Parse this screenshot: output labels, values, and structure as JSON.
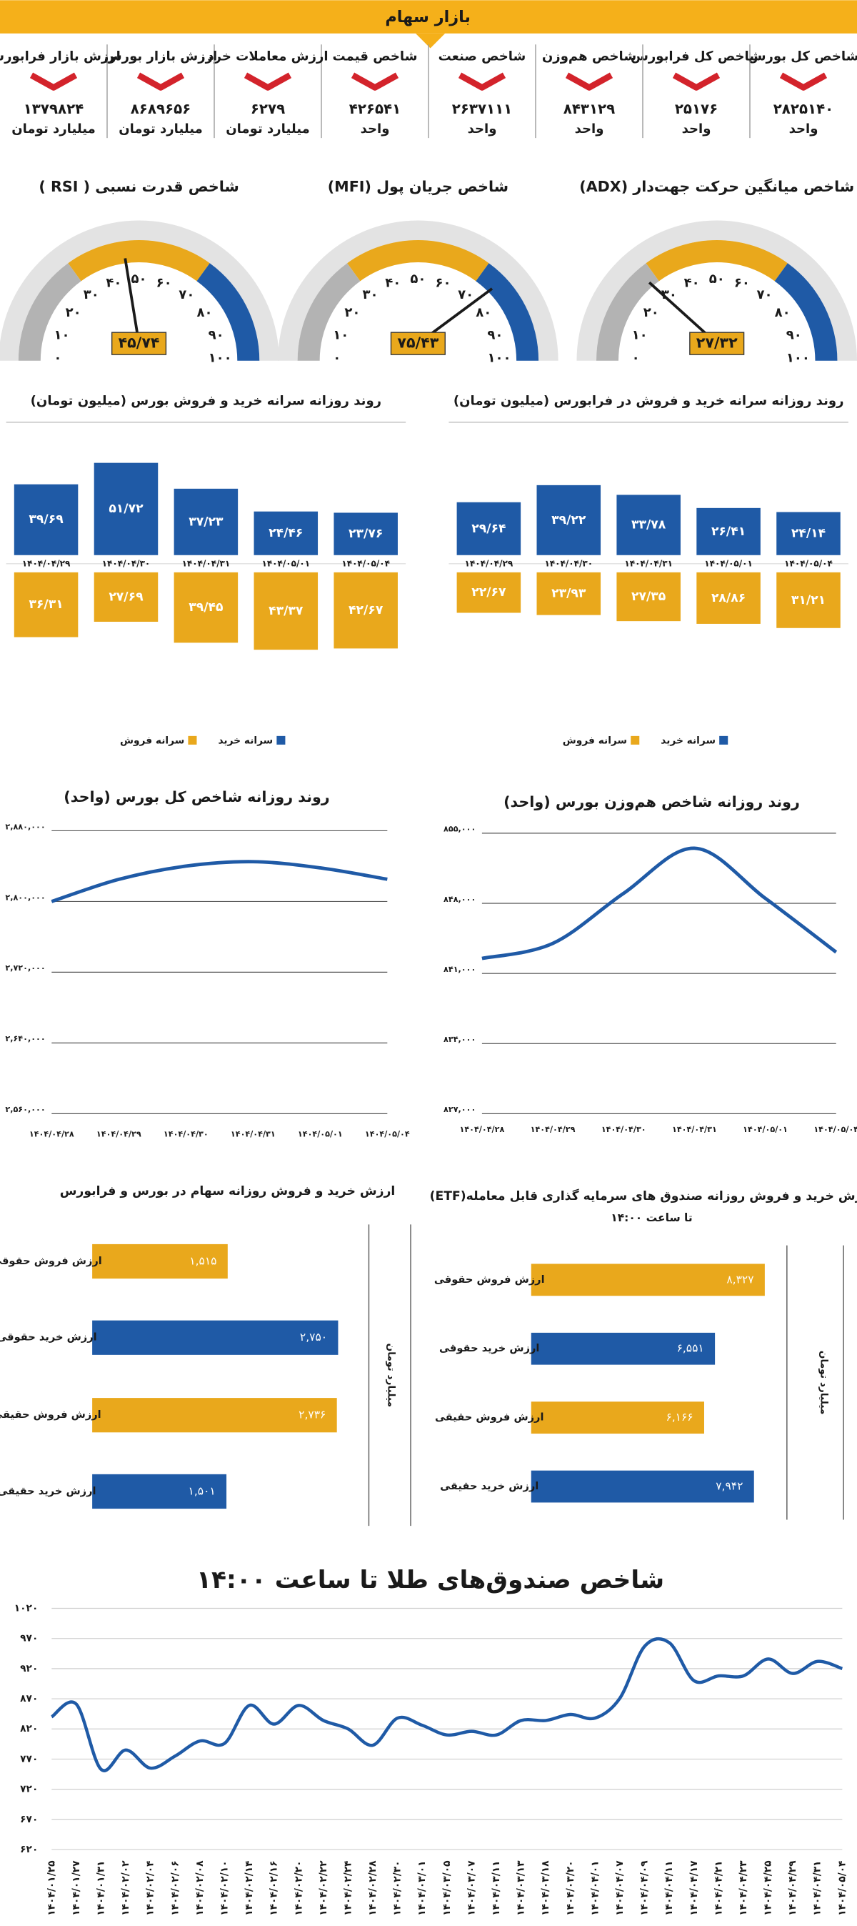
{
  "header": {
    "title": "بازار سهام"
  },
  "indices": [
    {
      "label": "شاخص کل بورس",
      "value": "۲۸۲۵۱۴۰",
      "unit": "واحد"
    },
    {
      "label": "شاخص کل فرابورس",
      "value": "۲۵۱۷۶",
      "unit": "واحد"
    },
    {
      "label": "شاخص هم‌وزن",
      "value": "۸۴۳۱۲۹",
      "unit": "واحد"
    },
    {
      "label": "شاخص صنعت",
      "value": "۲۶۳۷۱۱۱",
      "unit": "واحد"
    },
    {
      "label": "شاخص قیمت",
      "value": "۴۲۶۵۴۱",
      "unit": "واحد"
    },
    {
      "label": "ارزش معاملات خرد",
      "value": "۶۲۷۹",
      "unit": "میلیارد تومان"
    },
    {
      "label": "ارزش بازار بورس",
      "value": "۸۶۸۹۶۵۶",
      "unit": "میلیارد تومان"
    },
    {
      "label": "ارزش بازار فرابورس",
      "value": "۱۳۷۹۸۲۴",
      "unit": "میلیارد تومان"
    }
  ],
  "chart_data": [
    {
      "type": "gauge",
      "title": "شاخص میانگین حرکت جهت‌دار (ADX)",
      "values": [
        27.32
      ],
      "value_labels": [
        "۲۷/۳۲"
      ],
      "ylim": [
        0,
        100
      ],
      "yticks": [
        {
          "value": 0,
          "label": "۰"
        },
        {
          "value": 10,
          "label": "۱۰"
        },
        {
          "value": 20,
          "label": "۲۰"
        },
        {
          "value": 30,
          "label": "۳۰"
        },
        {
          "value": 40,
          "label": "۴۰"
        },
        {
          "value": 50,
          "label": "۵۰"
        },
        {
          "value": 60,
          "label": "۶۰"
        },
        {
          "value": 70,
          "label": "۷۰"
        },
        {
          "value": 80,
          "label": "۸۰"
        },
        {
          "value": 90,
          "label": "۹۰"
        },
        {
          "value": 100,
          "label": "۱۰۰"
        }
      ],
      "bands": [
        {
          "from": 0,
          "to": 30,
          "color": "#b3b3b3"
        },
        {
          "from": 30,
          "to": 70,
          "color": "#e9a81c"
        },
        {
          "from": 70,
          "to": 100,
          "color": "#1f5aa6"
        }
      ]
    },
    {
      "type": "gauge",
      "title": "شاخص جریان پول (MFI)",
      "values": [
        75.43
      ],
      "value_labels": [
        "۷۵/۴۳"
      ],
      "ylim": [
        0,
        100
      ],
      "yticks": [
        {
          "value": 0,
          "label": "۰"
        },
        {
          "value": 10,
          "label": "۱۰"
        },
        {
          "value": 20,
          "label": "۲۰"
        },
        {
          "value": 30,
          "label": "۳۰"
        },
        {
          "value": 40,
          "label": "۴۰"
        },
        {
          "value": 50,
          "label": "۵۰"
        },
        {
          "value": 60,
          "label": "۶۰"
        },
        {
          "value": 70,
          "label": "۷۰"
        },
        {
          "value": 80,
          "label": "۸۰"
        },
        {
          "value": 90,
          "label": "۹۰"
        },
        {
          "value": 100,
          "label": "۱۰۰"
        }
      ],
      "bands": [
        {
          "from": 0,
          "to": 30,
          "color": "#b3b3b3"
        },
        {
          "from": 30,
          "to": 70,
          "color": "#e9a81c"
        },
        {
          "from": 70,
          "to": 100,
          "color": "#1f5aa6"
        }
      ]
    },
    {
      "type": "gauge",
      "title": "شاخص قدرت نسبی ( RSI )",
      "values": [
        45.74
      ],
      "value_labels": [
        "۴۵/۷۴"
      ],
      "ylim": [
        0,
        100
      ],
      "yticks": [
        {
          "value": 0,
          "label": "۰"
        },
        {
          "value": 10,
          "label": "۱۰"
        },
        {
          "value": 20,
          "label": "۲۰"
        },
        {
          "value": 30,
          "label": "۳۰"
        },
        {
          "value": 40,
          "label": "۴۰"
        },
        {
          "value": 50,
          "label": "۵۰"
        },
        {
          "value": 60,
          "label": "۶۰"
        },
        {
          "value": 70,
          "label": "۷۰"
        },
        {
          "value": 80,
          "label": "۸۰"
        },
        {
          "value": 90,
          "label": "۹۰"
        },
        {
          "value": 100,
          "label": "۱۰۰"
        }
      ],
      "bands": [
        {
          "from": 0,
          "to": 30,
          "color": "#b3b3b3"
        },
        {
          "from": 30,
          "to": 70,
          "color": "#e9a81c"
        },
        {
          "from": 70,
          "to": 100,
          "color": "#1f5aa6"
        }
      ]
    },
    {
      "type": "bar",
      "title": "روند روزانه سرانه خرید و فروش بورس (میلیون تومان)",
      "mirrored": true,
      "categories": [
        "۱۴۰۴/۰۴/۲۹",
        "۱۴۰۴/۰۴/۳۰",
        "۱۴۰۴/۰۴/۳۱",
        "۱۴۰۴/۰۵/۰۱",
        "۱۴۰۴/۰۵/۰۴"
      ],
      "series": [
        {
          "name": "سرانه خرید",
          "color": "#1f5aa6",
          "values": [
            39.69,
            51.72,
            37.23,
            24.46,
            23.76
          ],
          "value_labels": [
            "۳۹/۶۹",
            "۵۱/۷۲",
            "۳۷/۲۳",
            "۲۴/۴۶",
            "۲۳/۷۶"
          ]
        },
        {
          "name": "سرانه فروش",
          "color": "#e9a81c",
          "values": [
            36.31,
            27.69,
            39.45,
            43.37,
            42.67
          ],
          "value_labels": [
            "۳۶/۳۱",
            "۲۷/۶۹",
            "۳۹/۴۵",
            "۴۳/۳۷",
            "۴۲/۶۷"
          ]
        }
      ]
    },
    {
      "type": "bar",
      "title": "روند روزانه سرانه خرید و فروش در فرابورس (میلیون تومان)",
      "mirrored": true,
      "categories": [
        "۱۴۰۴/۰۴/۲۹",
        "۱۴۰۴/۰۴/۳۰",
        "۱۴۰۴/۰۴/۳۱",
        "۱۴۰۴/۰۵/۰۱",
        "۱۴۰۴/۰۵/۰۴"
      ],
      "series": [
        {
          "name": "سرانه خرید",
          "color": "#1f5aa6",
          "values": [
            29.64,
            39.22,
            33.78,
            26.41,
            24.14
          ],
          "value_labels": [
            "۲۹/۶۴",
            "۳۹/۲۲",
            "۳۳/۷۸",
            "۲۶/۴۱",
            "۲۴/۱۴"
          ]
        },
        {
          "name": "سرانه فروش",
          "color": "#e9a81c",
          "values": [
            22.67,
            23.93,
            27.35,
            28.86,
            31.21
          ],
          "value_labels": [
            "۲۲/۶۷",
            "۲۳/۹۳",
            "۲۷/۳۵",
            "۲۸/۸۶",
            "۳۱/۲۱"
          ]
        }
      ]
    },
    {
      "type": "line",
      "title": "روند روزانه شاخص کل بورس (واحد)",
      "color": "#1f5aa6",
      "grid": true,
      "categories": [
        "۱۴۰۴/۰۴/۲۸",
        "۱۴۰۴/۰۴/۲۹",
        "۱۴۰۴/۰۴/۳۰",
        "۱۴۰۴/۰۴/۳۱",
        "۱۴۰۴/۰۵/۰۱",
        "۱۴۰۴/۰۵/۰۴"
      ],
      "values": [
        2800000,
        2825000,
        2840000,
        2845000,
        2838000,
        2825140
      ],
      "ylim": [
        2560000,
        2880000
      ],
      "yticks": [
        {
          "value": 2560000,
          "label": "۲,۵۶۰,۰۰۰"
        },
        {
          "value": 2640000,
          "label": "۲,۶۴۰,۰۰۰"
        },
        {
          "value": 2720000,
          "label": "۲,۷۲۰,۰۰۰"
        },
        {
          "value": 2800000,
          "label": "۲,۸۰۰,۰۰۰"
        },
        {
          "value": 2880000,
          "label": "۲,۸۸۰,۰۰۰"
        }
      ]
    },
    {
      "type": "line",
      "title": "روند روزانه شاخص هم‌وزن بورس (واحد)",
      "color": "#1f5aa6",
      "grid": true,
      "categories": [
        "۱۴۰۴/۰۴/۲۸",
        "۱۴۰۴/۰۴/۲۹",
        "۱۴۰۴/۰۴/۳۰",
        "۱۴۰۴/۰۴/۳۱",
        "۱۴۰۴/۰۵/۰۱",
        "۱۴۰۴/۰۵/۰۴"
      ],
      "values": [
        842500,
        844000,
        849000,
        853500,
        848500,
        843129
      ],
      "ylim": [
        827000,
        855000
      ],
      "yticks": [
        {
          "value": 827000,
          "label": "۸۲۷,۰۰۰"
        },
        {
          "value": 834000,
          "label": "۸۳۴,۰۰۰"
        },
        {
          "value": 841000,
          "label": "۸۴۱,۰۰۰"
        },
        {
          "value": 848000,
          "label": "۸۴۸,۰۰۰"
        },
        {
          "value": 855000,
          "label": "۸۵۵,۰۰۰"
        }
      ]
    },
    {
      "type": "barh",
      "title": "ارزش خرید و فروش روزانه سهام در بورس و فرابورس",
      "axis_label": "میلیارد تومان",
      "categories": [
        "ارزش فروش حقوقی",
        "ارزش خرید حقوقی",
        "ارزش فروش حقیقی",
        "ارزش خرید حقیقی"
      ],
      "values": [
        1515,
        2750,
        2736,
        1501
      ],
      "value_labels": [
        "۱,۵۱۵",
        "۲,۷۵۰",
        "۲,۷۳۶",
        "۱,۵۰۱"
      ],
      "colors": [
        "#e9a81c",
        "#1f5aa6",
        "#e9a81c",
        "#1f5aa6"
      ]
    },
    {
      "type": "barh",
      "title": "ارزش خرید و فروش روزانه صندوق های سرمایه گذاری قابل معامله(ETF)",
      "subtitle": "تا ساعت ۱۴:۰۰",
      "axis_label": "میلیارد تومان",
      "categories": [
        "ارزش فروش حقوقی",
        "ارزش خرید حقوقی",
        "ارزش فروش حقیقی",
        "ارزش خرید حقیقی"
      ],
      "values": [
        8327,
        6551,
        6166,
        7942
      ],
      "value_labels": [
        "۸,۳۲۷",
        "۶,۵۵۱",
        "۶,۱۶۶",
        "۷,۹۴۲"
      ],
      "colors": [
        "#e9a81c",
        "#1f5aa6",
        "#e9a81c",
        "#1f5aa6"
      ]
    },
    {
      "type": "line",
      "title": "شاخص صندوق‌های طلا تا ساعت ۱۴:۰۰",
      "color": "#1f5aa6",
      "grid": true,
      "categories": [
        "۱۴۰۴/۰۱/۲۵",
        "۱۴۰۴/۰۱/۲۷",
        "۱۴۰۴/۰۱/۳۱",
        "۱۴۰۴/۰۲/۰۲",
        "۱۴۰۴/۰۲/۰۴",
        "۱۴۰۴/۰۲/۰۶",
        "۱۴۰۴/۰۲/۰۸",
        "۱۴۰۴/۰۲/۱۰",
        "۱۴۰۴/۰۲/۱۴",
        "۱۴۰۴/۰۲/۱۶",
        "۱۴۰۴/۰۲/۲۰",
        "۱۴۰۴/۰۲/۲۲",
        "۱۴۰۴/۰۲/۲۴",
        "۱۴۰۴/۰۲/۲۸",
        "۱۴۰۴/۰۲/۳۰",
        "۱۴۰۴/۰۳/۰۱",
        "۱۴۰۴/۰۳/۰۵",
        "۱۴۰۴/۰۳/۰۷",
        "۱۴۰۴/۰۳/۱۱",
        "۱۴۰۴/۰۳/۱۳",
        "۱۴۰۴/۰۳/۱۸",
        "۱۴۰۴/۰۳/۲۰",
        "۱۴۰۴/۰۴/۰۱",
        "۱۴۰۴/۰۴/۰۷",
        "۱۴۰۴/۰۴/۰۹",
        "۱۴۰۴/۰۴/۱۱",
        "۱۴۰۴/۰۴/۱۷",
        "۱۴۰۴/۰۴/۲۱",
        "۱۴۰۴/۰۴/۲۳",
        "۱۴۰۴/۰۴/۲۵",
        "۱۴۰۴/۰۴/۲۹",
        "۱۴۰۴/۰۴/۳۱",
        "۱۴۰۴/۰۵/۰۴"
      ],
      "values": [
        840,
        861,
        753,
        785,
        755,
        775,
        800,
        796,
        859,
        828,
        859,
        834,
        820,
        793,
        838,
        826,
        810,
        816,
        810,
        834,
        834,
        844,
        838,
        871,
        957,
        963,
        900,
        908,
        908,
        936,
        912,
        932,
        920
      ],
      "ylim": [
        620,
        1020
      ],
      "yticks": [
        {
          "value": 620,
          "label": "۶۲۰"
        },
        {
          "value": 670,
          "label": "۶۷۰"
        },
        {
          "value": 720,
          "label": "۷۲۰"
        },
        {
          "value": 770,
          "label": "۷۷۰"
        },
        {
          "value": 820,
          "label": "۸۲۰"
        },
        {
          "value": 870,
          "label": "۸۷۰"
        },
        {
          "value": 920,
          "label": "۹۲۰"
        },
        {
          "value": 970,
          "label": "۹۷۰"
        },
        {
          "value": 1020,
          "label": "۱۰۲۰"
        }
      ]
    }
  ]
}
